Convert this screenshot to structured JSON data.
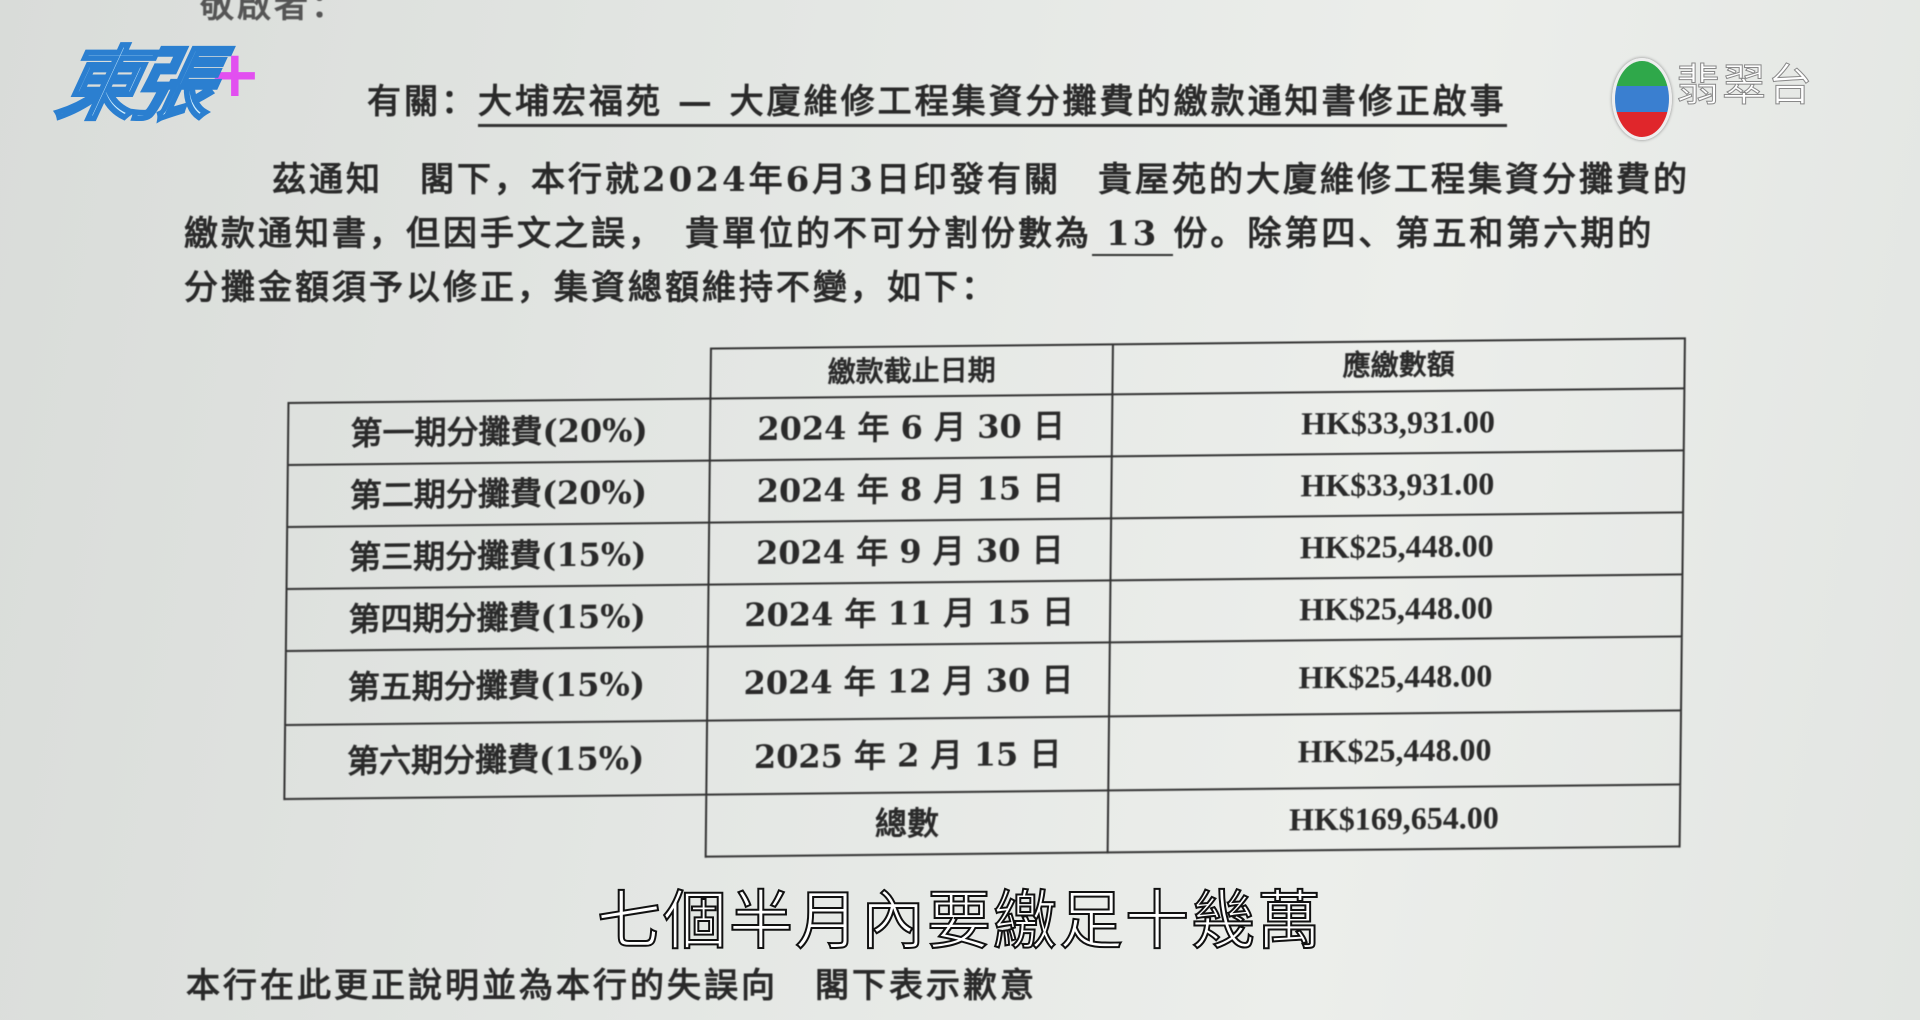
{
  "overlay": {
    "show_logo": "東張+",
    "channel_name": "翡翠台",
    "tvb_logo_colors": [
      "#2fa84a",
      "#3a7fd0",
      "#e0262b"
    ],
    "subtitle": "七個半月內要繳足十幾萬"
  },
  "letter": {
    "greeting": "敬啟者：",
    "subject_prefix": "有關：",
    "subject": "大埔宏福苑 — 大廈維修工程集資分攤費的繳款通知書修正啟事",
    "p1": "茲通知　閣下，本行就2024年6月3日印發有關　貴屋苑的大廈維修工程集資分攤費的",
    "p2_a": "繳款通知書，但因手文之誤，　貴單位的不可分割份數為",
    "shares": "13",
    "p2_b": "份。除第四、第五和第六期的",
    "p3": "分攤金額須予以修正，集資總額維持不變，如下：",
    "closing": "本行在此更正說明並為本行的失誤向　閣下表示歉意"
  },
  "table": {
    "headers": [
      "繳款截止日期",
      "應繳數額"
    ],
    "rows": [
      {
        "label": "第一期分攤費(20%)",
        "date": "2024 年 6 月 30 日",
        "amount": "HK$33,931.00"
      },
      {
        "label": "第二期分攤費(20%)",
        "date": "2024 年 8 月 15 日",
        "amount": "HK$33,931.00"
      },
      {
        "label": "第三期分攤費(15%)",
        "date": "2024 年 9 月 30 日",
        "amount": "HK$25,448.00"
      },
      {
        "label": "第四期分攤費(15%)",
        "date": "2024 年 11 月 15 日",
        "amount": "HK$25,448.00"
      },
      {
        "label": "第五期分攤費(15%)",
        "date": "2024 年 12 月 30 日",
        "amount": "HK$25,448.00"
      },
      {
        "label": "第六期分攤費(15%)",
        "date": "2025 年 2 月 15 日",
        "amount": "HK$25,448.00"
      }
    ],
    "total_label": "總數",
    "total_amount": "HK$169,654.00"
  }
}
